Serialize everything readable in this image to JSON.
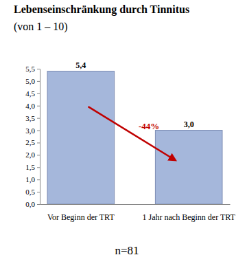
{
  "chart_data": {
    "type": "bar",
    "title": "Lebenseinschränkung durch Tinnitus",
    "subtitle": "(von 1 – 10)",
    "categories": [
      "Vor Beginn der TRT",
      "1 Jahr nach Beginn der TRT"
    ],
    "values": [
      5.4,
      3.0
    ],
    "value_labels": [
      "5,4",
      "3,0"
    ],
    "color": "#a5b7db",
    "ylim": [
      0,
      5.5
    ],
    "yticks": [
      {
        "value": 0,
        "label": "0,0"
      },
      {
        "value": 0.5,
        "label": "0,5"
      },
      {
        "value": 1,
        "label": "1,0"
      },
      {
        "value": 1.5,
        "label": "1,5"
      },
      {
        "value": 2,
        "label": "2,0"
      },
      {
        "value": 2.5,
        "label": "2,5"
      },
      {
        "value": 3,
        "label": "3,0"
      },
      {
        "value": 3.5,
        "label": "3,5"
      },
      {
        "value": 4,
        "label": "4,0"
      },
      {
        "value": 4.5,
        "label": "4,5"
      },
      {
        "value": 5,
        "label": "5,0"
      },
      {
        "value": 5.5,
        "label": "5,5"
      }
    ],
    "grid": false,
    "data_labels": true,
    "annotations": [
      "-44%",
      "n=81"
    ]
  }
}
